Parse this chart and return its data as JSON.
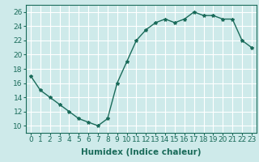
{
  "x": [
    0,
    1,
    2,
    3,
    4,
    5,
    6,
    7,
    8,
    9,
    10,
    11,
    12,
    13,
    14,
    15,
    16,
    17,
    18,
    19,
    20,
    21,
    22,
    23
  ],
  "y": [
    17,
    15,
    14,
    13,
    12,
    11,
    10.5,
    10,
    11,
    16,
    19,
    22,
    23.5,
    24.5,
    25,
    24.5,
    25,
    26,
    25.5,
    25.5,
    25,
    25,
    22,
    21
  ],
  "line_color": "#1a6b5a",
  "marker": "*",
  "marker_size": 3,
  "bg_color": "#ceeaea",
  "grid_color": "#ffffff",
  "xlabel": "Humidex (Indice chaleur)",
  "xlabel_fontsize": 7.5,
  "xlabel_bold": true,
  "yticks": [
    10,
    12,
    14,
    16,
    18,
    20,
    22,
    24,
    26
  ],
  "xtick_labels": [
    "0",
    "1",
    "2",
    "3",
    "4",
    "5",
    "6",
    "7",
    "8",
    "9",
    "10",
    "11",
    "12",
    "13",
    "14",
    "15",
    "16",
    "17",
    "18",
    "19",
    "20",
    "21",
    "22",
    "23"
  ],
  "ylim": [
    9,
    27
  ],
  "xlim": [
    -0.5,
    23.5
  ],
  "tick_fontsize": 6.5,
  "line_width": 1.0
}
